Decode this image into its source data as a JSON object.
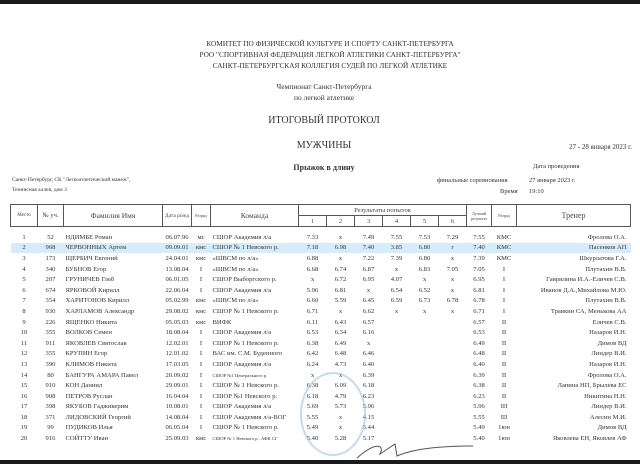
{
  "header": {
    "org_lines": [
      "КОМИТЕТ ПО ФИЗИЧЕСКОЙ КУЛЬТУРЕ И СПОРТУ САНКТ-ПЕТЕРБУРГА",
      "РОО \"СПОРТИВНАЯ ФЕДЕРАЦИЯ ЛЕГКОЙ АТЛЕТИКИ САНКТ-ПЕТЕРБУРГА\"",
      "САНКТ-ПЕТЕРБУРГСКАЯ КОЛЛЕГИЯ СУДЕЙ ПО ЛЕГКОЙ АТЛЕТИКЕ"
    ],
    "championship": [
      "Чемпионат Санкт-Петербурга",
      "по легкой атлетике"
    ],
    "protocol_title": "ИТОГОВЫЙ ПРОТОКОЛ",
    "category": "МУЖЧИНЫ",
    "dates": "27 - 28 января 2023 г.",
    "event": "Прыжок в длину",
    "date_label": "Дата проведения",
    "final_label": "финальные соревнования",
    "final_date": "27 января 2023 г.",
    "time_label": "Время",
    "time": "19:10",
    "venue": [
      "Санкт-Петербург, СК \"Легкоатлетический манеж\",",
      "Теннисная аллея, дом 3"
    ]
  },
  "table": {
    "headers": {
      "place": "Место",
      "bib": "№ уч.",
      "name": "Фамилия Имя",
      "dob": "Дата рожд",
      "rank": "Разряд",
      "team": "Команда",
      "attempts": "Результаты попыток",
      "attempt_nums": [
        "1",
        "2",
        "3",
        "4",
        "5",
        "6"
      ],
      "best": "Лучший результат",
      "new_rank": "Разряд",
      "coach": "Тренер"
    },
    "highlight_color": "#d6ecfb",
    "rows": [
      [
        "1",
        "52",
        "НДИМБЕ Роман",
        "06.07.96",
        "мс",
        "СШОР Академия л/а",
        "7.33",
        "x",
        "7.49",
        "7.55",
        "7.53",
        "7.29",
        "7.55",
        "КМС",
        "Фролова О.А."
      ],
      [
        "2",
        "968",
        "ЧЕРВОННЫХ Артем",
        "09.09.01",
        "кмс",
        "СШОР № 1 Невского р.",
        "7.18",
        "6.98",
        "7.40",
        "3.85",
        "6.80",
        "r",
        "7.40",
        "КМС",
        "Пасенков АП"
      ],
      [
        "3",
        "173",
        "ЩЕРБИЧ Евгений",
        "24.04.01",
        "кмс",
        "«ШВСМ по л/а»",
        "6.88",
        "x",
        "7.22",
        "7.39",
        "6.80",
        "x",
        "7.39",
        "КМС",
        "Шкурлатова Г.А."
      ],
      [
        "4",
        "340",
        "БУБНОВ Егор",
        "13.08.04",
        "I",
        "«ШВСМ по л/а»",
        "6.68",
        "6.74",
        "6.87",
        "x",
        "6.83",
        "7.05",
        "7.05",
        "I",
        "Плутахин В.В."
      ],
      [
        "5",
        "207",
        "ГРУНИЧЕВ Глеб",
        "06.01.05",
        "I",
        "СШОР Выборгского р.",
        "x",
        "6.72",
        "6.95",
        "4.07",
        "x",
        "x",
        "6.95",
        "I",
        "Гаврилина И.А.-Еличев С.В."
      ],
      [
        "6",
        "674",
        "ЯРКОВОЙ Кирилл",
        "22.06.04",
        "I",
        "СШОР Академия л/а",
        "5.96",
        "6.81",
        "x",
        "6.54",
        "6.52",
        "x",
        "6.81",
        "I",
        "Иванов Д.А.,Михайлова М.Ю."
      ],
      [
        "7",
        "354",
        "ХАРИТОНОВ Кирилл",
        "05.02.99",
        "кмс",
        "«ШВСМ по л/а»",
        "6.60",
        "5.59",
        "6.45",
        "6.59",
        "6.73",
        "6.78",
        "6.78",
        "I",
        "Плутахин В.В."
      ],
      [
        "8",
        "930",
        "ХАРЛАМОВ Александр",
        "29.08.02",
        "кмс",
        "СШОР № 1 Невского р.",
        "6.71",
        "x",
        "6.62",
        "x",
        "x",
        "x",
        "6.71",
        "I",
        "Травкин СА, Менькова АА"
      ],
      [
        "9",
        "226",
        "ЯЩЕНКО Никита",
        "05.05.03",
        "кмс",
        "ВИФК",
        "6.11",
        "6.43",
        "6.57",
        "",
        "",
        "",
        "6.57",
        "II",
        "Еличев С.В."
      ],
      [
        "10",
        "355",
        "ВОЛКОВ Семен",
        "18.08.04",
        "I",
        "СШОР Академия л/а",
        "6.53",
        "6.34",
        "6.16",
        "",
        "",
        "",
        "6.53",
        "II",
        "Назаров И.Н."
      ],
      [
        "11",
        "911",
        "ЯКОВЛЕВ Святослав",
        "12.02.01",
        "I",
        "СШОР № 1 Невского р.",
        "6.38",
        "6.49",
        "x",
        "",
        "",
        "",
        "6.49",
        "II",
        "Димов ВД"
      ],
      [
        "12",
        "355",
        "КРУПИН Егор",
        "12.01.02",
        "I",
        "ВАС им. С.М. Буденного",
        "6.42",
        "6.48",
        "6.46",
        "",
        "",
        "",
        "6.48",
        "II",
        "Линдер В.И."
      ],
      [
        "13",
        "390",
        "КЛИМОВ Никита",
        "17.03.05",
        "I",
        "СШОР Академия л/а",
        "6.24",
        "4.73",
        "6.40",
        "",
        "",
        "",
        "6.40",
        "II",
        "Назаров И.Н."
      ],
      [
        "14",
        "80",
        "БАНГУРА АМАРА Павел",
        "20.09.02",
        "I",
        "СШОР №1 Центрального р.",
        "x",
        "x",
        "6.39",
        "",
        "",
        "",
        "6.39",
        "II",
        "Фролова О.А."
      ],
      [
        "15",
        "910",
        "КОН Даниил",
        "29.09.01",
        "I",
        "СШОР № 1 Невского р.",
        "6.38",
        "6.09",
        "6.18",
        "",
        "",
        "",
        "6.38",
        "II",
        "Лапина НП, Брылева ЕС"
      ],
      [
        "16",
        "908",
        "ПЕТРОВ Руслан",
        "16.04.04",
        "I",
        "СШОР №1 Невского р.",
        "6.18",
        "4.79",
        "6.23",
        "",
        "",
        "",
        "6.23",
        "II",
        "Никитина Н.Н."
      ],
      [
        "17",
        "398",
        "ЯКУБОВ Гаджикерим",
        "10.08.01",
        "I",
        "СШОР Академия л/а",
        "5.69",
        "5.73",
        "5.96",
        "",
        "",
        "",
        "5.96",
        "III",
        "Линдер В.И."
      ],
      [
        "18",
        "371",
        "ЛИДОВСКИЙ Георгий",
        "14.08.04",
        "I",
        "СШОР Академия л/а-ВОГ",
        "5.55",
        "x",
        "4.15",
        "",
        "",
        "",
        "5.55",
        "III",
        "Алесин М.И."
      ],
      [
        "19",
        "99",
        "ПУДИКОВ Илья",
        "06.05.04",
        "I",
        "СШОР № 1 Невского р.",
        "5.49",
        "x",
        "5.44",
        "",
        "",
        "",
        "5.49",
        "1юн",
        "Димов ВД"
      ],
      [
        "20",
        "916",
        "СОЙТТУ Иван",
        "25.09.03",
        "кмс",
        "СШОР № 1 Невского р., АФК СГ",
        "5.40",
        "5.28",
        "5.17",
        "",
        "",
        "",
        "5.40",
        "1юн",
        "Яковлева ЕН, Яковлев АФ"
      ]
    ]
  }
}
